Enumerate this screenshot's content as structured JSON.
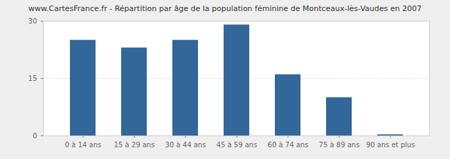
{
  "chart_data": {
    "type": "bar",
    "title": "www.CartesFrance.fr - Répartition par âge de la population féminine de Montceaux-lès-Vaudes en 2007",
    "categories": [
      "0 à 14 ans",
      "15 à 29 ans",
      "30 à 44 ans",
      "45 à 59 ans",
      "60 à 74 ans",
      "75 à 89 ans",
      "90 ans et plus"
    ],
    "values": [
      25,
      23,
      25,
      29,
      16,
      10,
      0.3
    ],
    "color": "#336699",
    "ylim": [
      0,
      30
    ],
    "yticks": [
      0,
      15,
      30
    ],
    "grid": true
  }
}
